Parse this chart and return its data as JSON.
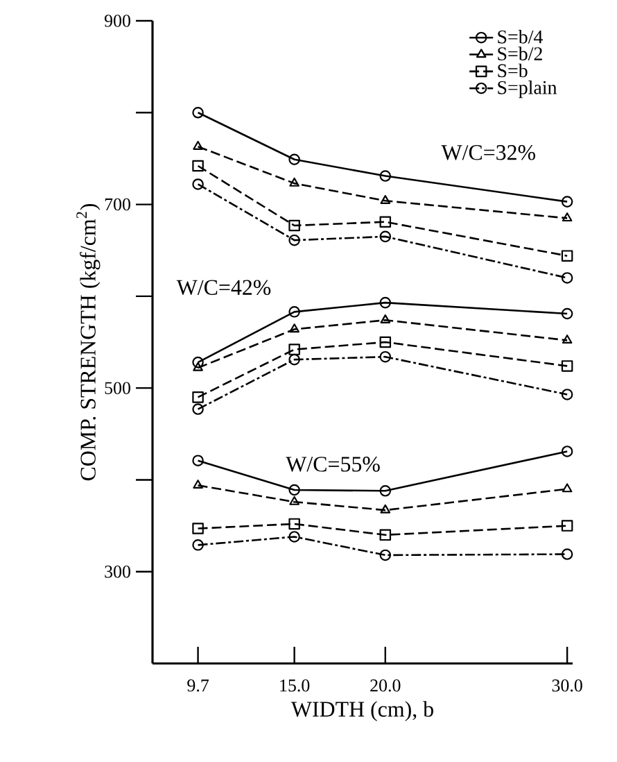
{
  "chart_data": {
    "type": "line",
    "xlabel": "WIDTH (cm), b",
    "ylabel": "COMP. STRENGTH (kgf/cm$^{2}$)",
    "x": [
      9.7,
      15.0,
      20.0,
      30.0
    ],
    "xlim": [
      7.2,
      30.3
    ],
    "xticks": [
      {
        "value": 9.7,
        "label": "9.7"
      },
      {
        "value": 15.0,
        "label": "15.0"
      },
      {
        "value": 20.0,
        "label": "20.0"
      },
      {
        "value": 30.0,
        "label": "30.0"
      }
    ],
    "ylim": [
      200,
      900
    ],
    "yticks": [
      300,
      {
        "value": 400,
        "label": null
      },
      500,
      {
        "value": 600,
        "label": null
      },
      700,
      {
        "value": 800,
        "label": null
      },
      900
    ],
    "grid": false,
    "legend": "top right",
    "series": [
      {
        "name": "S=b/4",
        "color": "#000000",
        "marker": "circle",
        "line_style": "solid",
        "values": [
          800,
          749,
          731,
          703
        ]
      },
      {
        "name": "S=b/2",
        "color": "#000000",
        "marker": "triangle",
        "line_style": "dashed",
        "values": [
          763,
          723,
          704,
          685
        ]
      },
      {
        "name": "S=b",
        "color": "#000000",
        "marker": "square",
        "line_style": "dashed",
        "values": [
          742,
          677,
          681,
          644
        ]
      },
      {
        "name": "S=plain",
        "color": "#000000",
        "marker": "circle",
        "line_style": "dotted",
        "values": [
          722,
          661,
          665,
          620
        ]
      },
      {
        "color": "#000000",
        "marker": "circle",
        "line_style": "solid",
        "values": [
          528,
          583,
          593,
          581
        ]
      },
      {
        "color": "#000000",
        "marker": "triangle",
        "line_style": "dashed",
        "values": [
          522,
          564,
          574,
          552
        ]
      },
      {
        "color": "#000000",
        "marker": "square",
        "line_style": "dashed",
        "values": [
          490,
          542,
          550,
          524
        ]
      },
      {
        "color": "#000000",
        "marker": "circle",
        "line_style": "dotted",
        "values": [
          477,
          531,
          534,
          493
        ]
      },
      {
        "color": "#000000",
        "marker": "circle",
        "line_style": "solid",
        "values": [
          421,
          389,
          388,
          431
        ]
      },
      {
        "color": "#000000",
        "marker": "triangle",
        "line_style": "dashed",
        "values": [
          394,
          376,
          367,
          390
        ]
      },
      {
        "color": "#000000",
        "marker": "square",
        "line_style": "dashed",
        "values": [
          347,
          352,
          340,
          350
        ]
      },
      {
        "color": "#000000",
        "marker": "circle",
        "line_style": "dotted",
        "values": [
          329,
          338,
          318,
          319
        ]
      }
    ],
    "annotations": [
      "W/C=32%",
      "W/C=42%",
      "W/C=55%"
    ]
  }
}
